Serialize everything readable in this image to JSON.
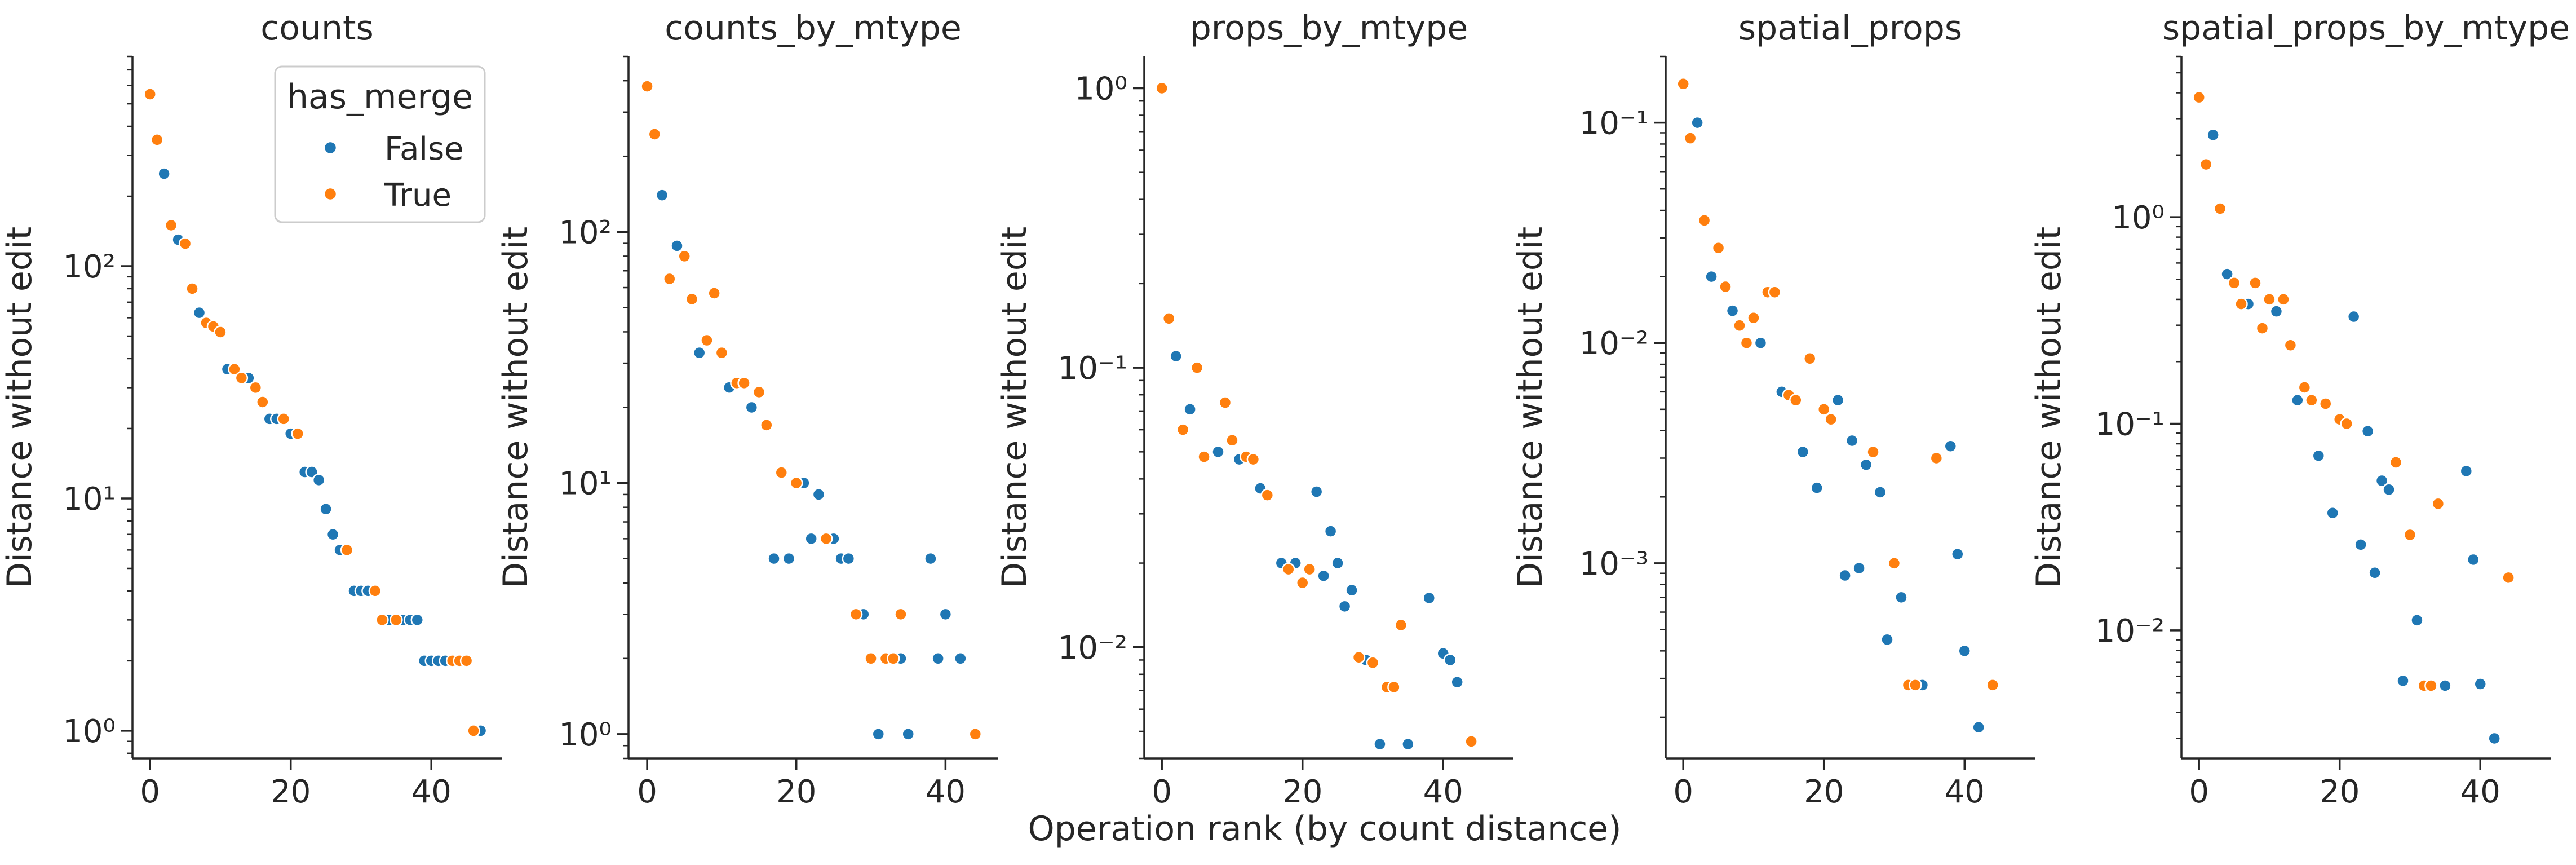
{
  "figure": {
    "shared_xlabel": "Operation rank (by count distance)"
  },
  "legend": {
    "title": "has_merge",
    "entries": [
      {
        "label": "False",
        "color": "#1f77b4"
      },
      {
        "label": "True",
        "color": "#ff7f0e"
      }
    ]
  },
  "chart_data": [
    {
      "type": "scatter",
      "title": "counts",
      "xlabel": "",
      "ylabel": "Distance without edit",
      "yscale": "log",
      "xlim": [
        -2.5,
        50
      ],
      "ylim": [
        0.76,
        800
      ],
      "xticks": [
        0,
        20,
        40
      ],
      "yticks": [
        1,
        10,
        100
      ],
      "legend": "top-right",
      "series": [
        {
          "name": "False",
          "color": "#1f77b4",
          "points": [
            [
              2,
              250
            ],
            [
              4,
              130
            ],
            [
              7,
              63
            ],
            [
              11,
              36
            ],
            [
              14,
              33
            ],
            [
              17,
              22
            ],
            [
              18,
              22
            ],
            [
              20,
              19
            ],
            [
              22,
              13
            ],
            [
              23,
              13
            ],
            [
              24,
              12
            ],
            [
              25,
              9
            ],
            [
              26,
              7
            ],
            [
              27,
              6
            ],
            [
              29,
              4
            ],
            [
              30,
              4
            ],
            [
              31,
              4
            ],
            [
              34,
              3
            ],
            [
              36,
              3
            ],
            [
              37,
              3
            ],
            [
              38,
              3
            ],
            [
              39,
              2
            ],
            [
              40,
              2
            ],
            [
              41,
              2
            ],
            [
              42,
              2
            ],
            [
              47,
              1
            ]
          ]
        },
        {
          "name": "True",
          "color": "#ff7f0e",
          "points": [
            [
              0,
              550
            ],
            [
              1,
              350
            ],
            [
              3,
              150
            ],
            [
              5,
              125
            ],
            [
              6,
              80
            ],
            [
              8,
              57
            ],
            [
              9,
              55
            ],
            [
              10,
              52
            ],
            [
              12,
              36
            ],
            [
              13,
              33
            ],
            [
              15,
              30
            ],
            [
              16,
              26
            ],
            [
              19,
              22
            ],
            [
              21,
              19
            ],
            [
              28,
              6
            ],
            [
              32,
              4
            ],
            [
              33,
              3
            ],
            [
              35,
              3
            ],
            [
              43,
              2
            ],
            [
              44,
              2
            ],
            [
              45,
              2
            ],
            [
              46,
              1
            ]
          ]
        }
      ]
    },
    {
      "type": "scatter",
      "title": "counts_by_mtype",
      "xlabel": "",
      "ylabel": "Distance without edit",
      "yscale": "log",
      "xlim": [
        -2.5,
        47
      ],
      "ylim": [
        0.8,
        500
      ],
      "xticks": [
        0,
        20,
        40
      ],
      "yticks": [
        1,
        10,
        100
      ],
      "series": [
        {
          "name": "False",
          "color": "#1f77b4",
          "points": [
            [
              2,
              140
            ],
            [
              4,
              88
            ],
            [
              7,
              33
            ],
            [
              11,
              24
            ],
            [
              14,
              20
            ],
            [
              17,
              5
            ],
            [
              19,
              5
            ],
            [
              21,
              10
            ],
            [
              22,
              6
            ],
            [
              23,
              9
            ],
            [
              25,
              6
            ],
            [
              26,
              5
            ],
            [
              27,
              5
            ],
            [
              29,
              3
            ],
            [
              31,
              1
            ],
            [
              34,
              2
            ],
            [
              35,
              1
            ],
            [
              38,
              5
            ],
            [
              39,
              2
            ],
            [
              40,
              3
            ],
            [
              42,
              2
            ]
          ]
        },
        {
          "name": "True",
          "color": "#ff7f0e",
          "points": [
            [
              0,
              380
            ],
            [
              1,
              245
            ],
            [
              3,
              65
            ],
            [
              5,
              80
            ],
            [
              6,
              54
            ],
            [
              8,
              37
            ],
            [
              9,
              57
            ],
            [
              10,
              33
            ],
            [
              12,
              25
            ],
            [
              13,
              25
            ],
            [
              15,
              23
            ],
            [
              16,
              17
            ],
            [
              18,
              11
            ],
            [
              20,
              10
            ],
            [
              24,
              6
            ],
            [
              28,
              3
            ],
            [
              30,
              2
            ],
            [
              32,
              2
            ],
            [
              33,
              2
            ],
            [
              34,
              3
            ],
            [
              44,
              1
            ]
          ]
        }
      ]
    },
    {
      "type": "scatter",
      "title": "props_by_mtype",
      "xlabel": "",
      "ylabel": "Distance without edit",
      "yscale": "log",
      "xlim": [
        -2.5,
        50
      ],
      "ylim": [
        0.004,
        1.3
      ],
      "xticks": [
        0,
        20,
        40
      ],
      "yticks": [
        0.01,
        0.1,
        1
      ],
      "series": [
        {
          "name": "False",
          "color": "#1f77b4",
          "points": [
            [
              2,
              0.11
            ],
            [
              4,
              0.071
            ],
            [
              8,
              0.05
            ],
            [
              11,
              0.047
            ],
            [
              14,
              0.037
            ],
            [
              17,
              0.02
            ],
            [
              19,
              0.02
            ],
            [
              22,
              0.036
            ],
            [
              23,
              0.018
            ],
            [
              24,
              0.026
            ],
            [
              25,
              0.02
            ],
            [
              26,
              0.014
            ],
            [
              27,
              0.016
            ],
            [
              29,
              0.009
            ],
            [
              31,
              0.0045
            ],
            [
              35,
              0.0045
            ],
            [
              38,
              0.015
            ],
            [
              40,
              0.0095
            ],
            [
              41,
              0.009
            ],
            [
              42,
              0.0075
            ]
          ]
        },
        {
          "name": "True",
          "color": "#ff7f0e",
          "points": [
            [
              0,
              1.0
            ],
            [
              1,
              0.15
            ],
            [
              3,
              0.06
            ],
            [
              5,
              0.1
            ],
            [
              6,
              0.048
            ],
            [
              9,
              0.075
            ],
            [
              10,
              0.055
            ],
            [
              12,
              0.048
            ],
            [
              13,
              0.047
            ],
            [
              15,
              0.035
            ],
            [
              18,
              0.019
            ],
            [
              20,
              0.017
            ],
            [
              21,
              0.019
            ],
            [
              28,
              0.0092
            ],
            [
              30,
              0.0088
            ],
            [
              32,
              0.0072
            ],
            [
              33,
              0.0072
            ],
            [
              34,
              0.012
            ],
            [
              44,
              0.0046
            ]
          ]
        }
      ]
    },
    {
      "type": "scatter",
      "title": "spatial_props",
      "xlabel": "",
      "ylabel": "Distance without edit",
      "yscale": "log",
      "xlim": [
        -2.5,
        50
      ],
      "ylim": [
        0.00013,
        0.2
      ],
      "xticks": [
        0,
        20,
        40
      ],
      "yticks": [
        0.001,
        0.01,
        0.1
      ],
      "series": [
        {
          "name": "False",
          "color": "#1f77b4",
          "points": [
            [
              2,
              0.1
            ],
            [
              4,
              0.02
            ],
            [
              7,
              0.014
            ],
            [
              11,
              0.01
            ],
            [
              14,
              0.006
            ],
            [
              17,
              0.0032
            ],
            [
              19,
              0.0022
            ],
            [
              22,
              0.0055
            ],
            [
              23,
              0.00088
            ],
            [
              24,
              0.0036
            ],
            [
              25,
              0.00095
            ],
            [
              26,
              0.0028
            ],
            [
              28,
              0.0021
            ],
            [
              29,
              0.00045
            ],
            [
              31,
              0.0007
            ],
            [
              34,
              0.00028
            ],
            [
              38,
              0.0034
            ],
            [
              39,
              0.0011
            ],
            [
              40,
              0.0004
            ],
            [
              42,
              0.00018
            ]
          ]
        },
        {
          "name": "True",
          "color": "#ff7f0e",
          "points": [
            [
              0,
              0.15
            ],
            [
              1,
              0.085
            ],
            [
              3,
              0.036
            ],
            [
              5,
              0.027
            ],
            [
              6,
              0.018
            ],
            [
              8,
              0.012
            ],
            [
              9,
              0.01
            ],
            [
              10,
              0.013
            ],
            [
              12,
              0.017
            ],
            [
              13,
              0.017
            ],
            [
              15,
              0.0058
            ],
            [
              16,
              0.0055
            ],
            [
              18,
              0.0085
            ],
            [
              20,
              0.005
            ],
            [
              21,
              0.0045
            ],
            [
              27,
              0.0032
            ],
            [
              30,
              0.001
            ],
            [
              32,
              0.00028
            ],
            [
              33,
              0.00028
            ],
            [
              36,
              0.003
            ],
            [
              44,
              0.00028
            ]
          ]
        }
      ]
    },
    {
      "type": "scatter",
      "title": "spatial_props_by_mtype",
      "xlabel": "",
      "ylabel": "Distance without edit",
      "yscale": "log",
      "xlim": [
        -2.5,
        50
      ],
      "ylim": [
        0.0024,
        6.0
      ],
      "xticks": [
        0,
        20,
        40
      ],
      "yticks": [
        0.01,
        0.1,
        1
      ],
      "series": [
        {
          "name": "False",
          "color": "#1f77b4",
          "points": [
            [
              2,
              2.5
            ],
            [
              4,
              0.53
            ],
            [
              7,
              0.38
            ],
            [
              11,
              0.35
            ],
            [
              14,
              0.13
            ],
            [
              17,
              0.07
            ],
            [
              19,
              0.037
            ],
            [
              22,
              0.33
            ],
            [
              23,
              0.026
            ],
            [
              24,
              0.092
            ],
            [
              25,
              0.019
            ],
            [
              26,
              0.053
            ],
            [
              27,
              0.048
            ],
            [
              29,
              0.0057
            ],
            [
              31,
              0.0112
            ],
            [
              35,
              0.0054
            ],
            [
              38,
              0.059
            ],
            [
              39,
              0.022
            ],
            [
              40,
              0.0055
            ],
            [
              42,
              0.003
            ]
          ]
        },
        {
          "name": "True",
          "color": "#ff7f0e",
          "points": [
            [
              0,
              3.8
            ],
            [
              1,
              1.8
            ],
            [
              3,
              1.1
            ],
            [
              5,
              0.48
            ],
            [
              6,
              0.38
            ],
            [
              8,
              0.48
            ],
            [
              9,
              0.29
            ],
            [
              10,
              0.4
            ],
            [
              12,
              0.4
            ],
            [
              13,
              0.24
            ],
            [
              15,
              0.15
            ],
            [
              16,
              0.13
            ],
            [
              18,
              0.125
            ],
            [
              20,
              0.105
            ],
            [
              21,
              0.1
            ],
            [
              28,
              0.065
            ],
            [
              30,
              0.029
            ],
            [
              32,
              0.0054
            ],
            [
              33,
              0.0054
            ],
            [
              34,
              0.041
            ],
            [
              44,
              0.018
            ]
          ]
        }
      ]
    }
  ]
}
